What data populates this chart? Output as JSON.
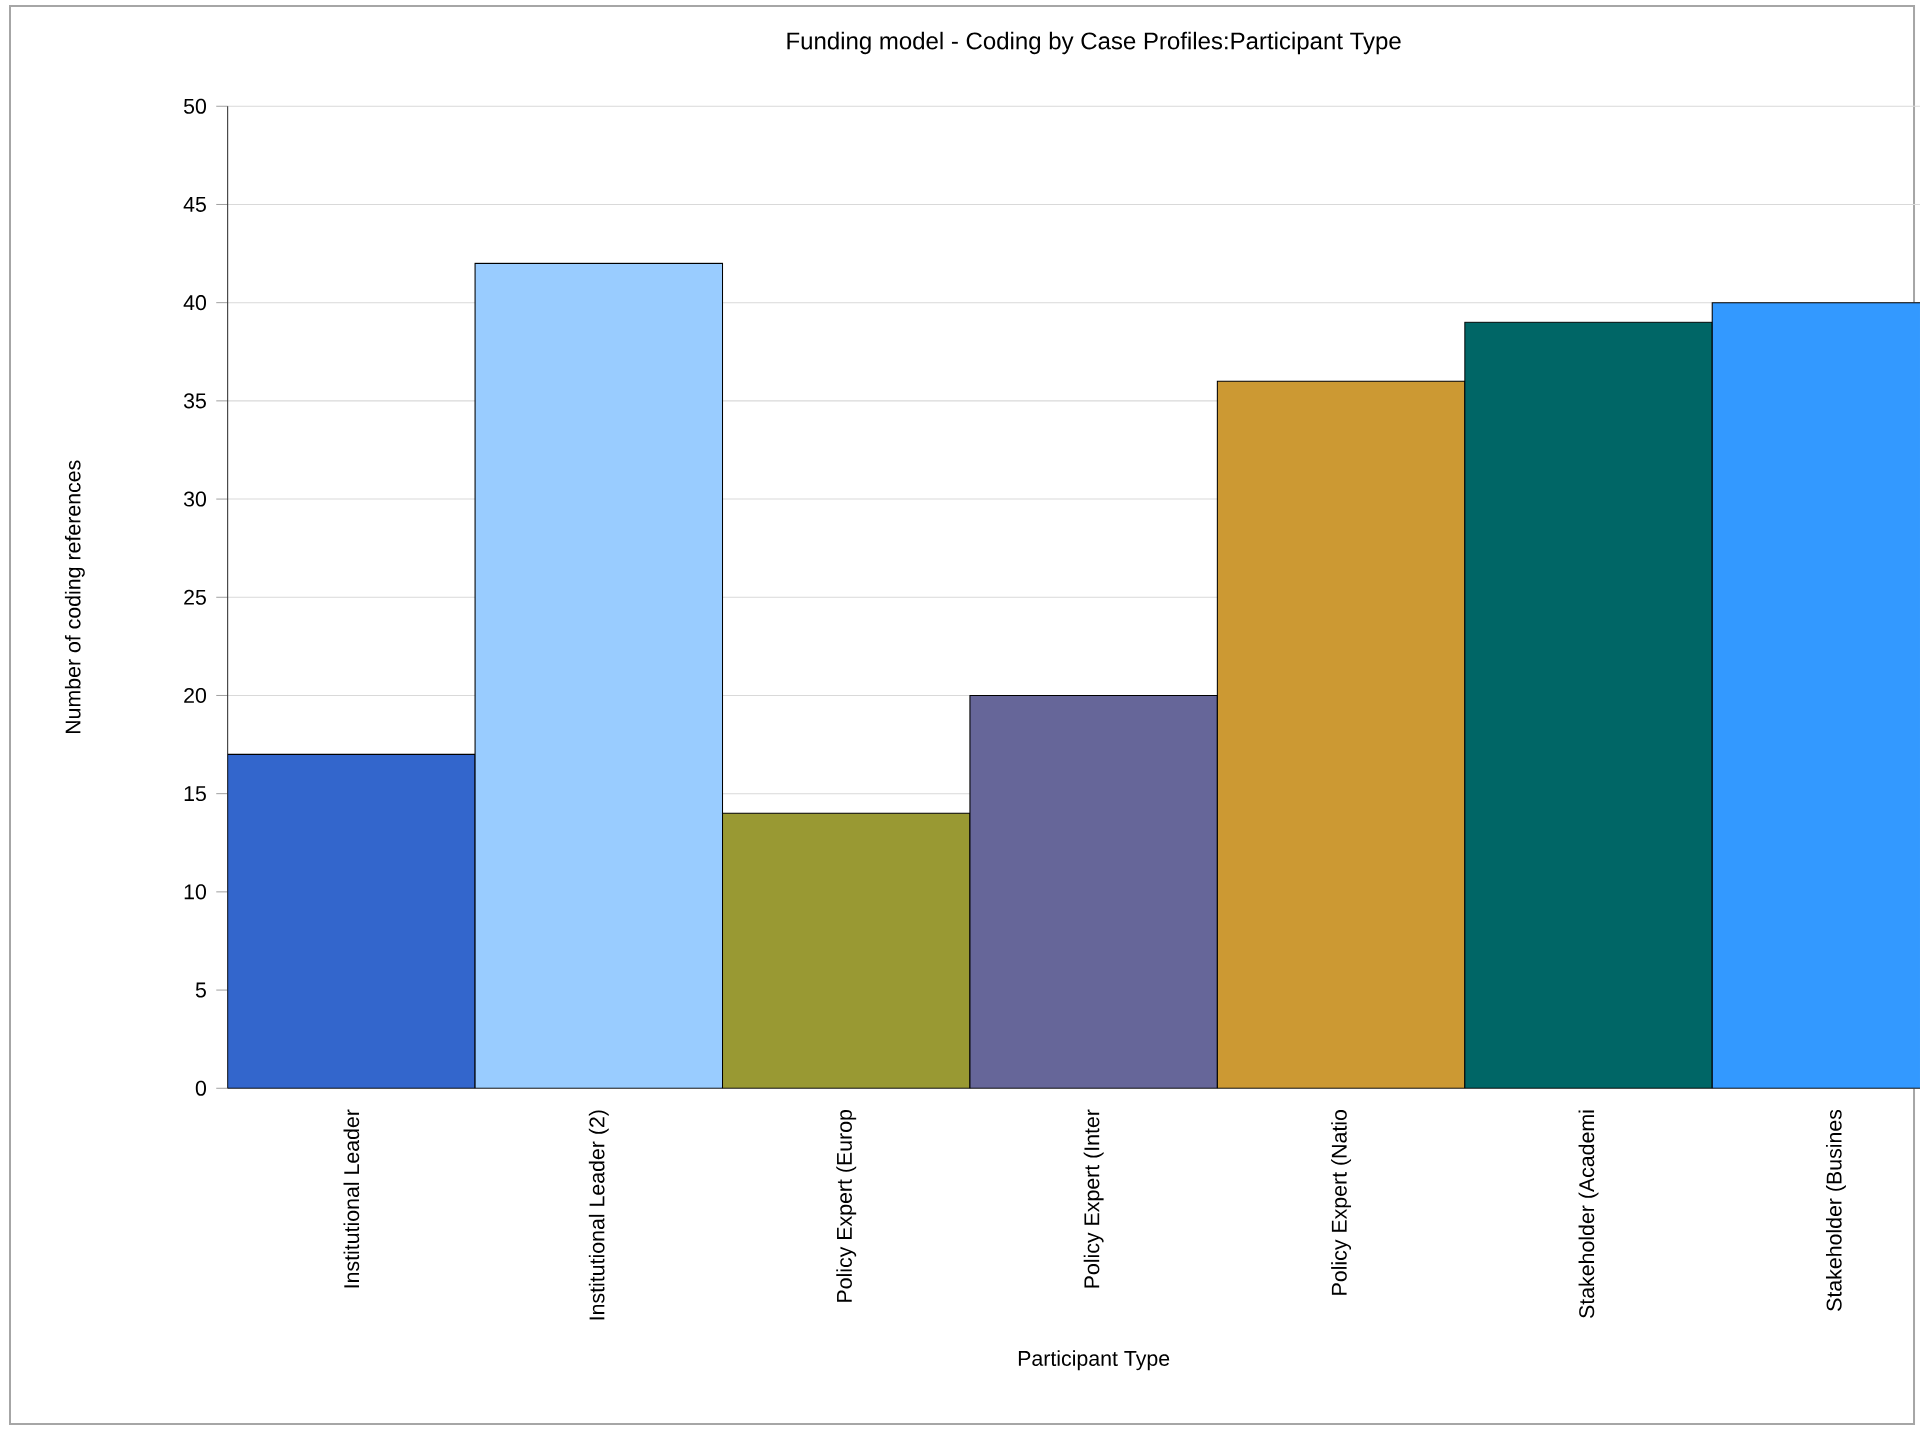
{
  "chart_data": {
    "type": "bar",
    "title": "Funding model - Coding by Case Profiles:Participant Type",
    "xlabel": "Participant Type",
    "ylabel": "Number of coding references",
    "categories": [
      "Institutional Leader",
      "Institutional Leader (2)",
      "Policy Expert (Europ",
      "Policy Expert (Inter",
      "Policy Expert (Natio",
      "Stakeholder (Academi",
      "Stakeholder (Busines"
    ],
    "values": [
      17,
      42,
      14,
      20,
      36,
      39,
      40
    ],
    "colors": [
      "#3366cc",
      "#99ccff",
      "#999933",
      "#666699",
      "#cc9933",
      "#006666",
      "#3399ff"
    ],
    "ylim": [
      0,
      50
    ],
    "yticks": [
      0,
      5,
      10,
      15,
      20,
      25,
      30,
      35,
      40,
      45,
      50
    ],
    "grid": "y"
  }
}
